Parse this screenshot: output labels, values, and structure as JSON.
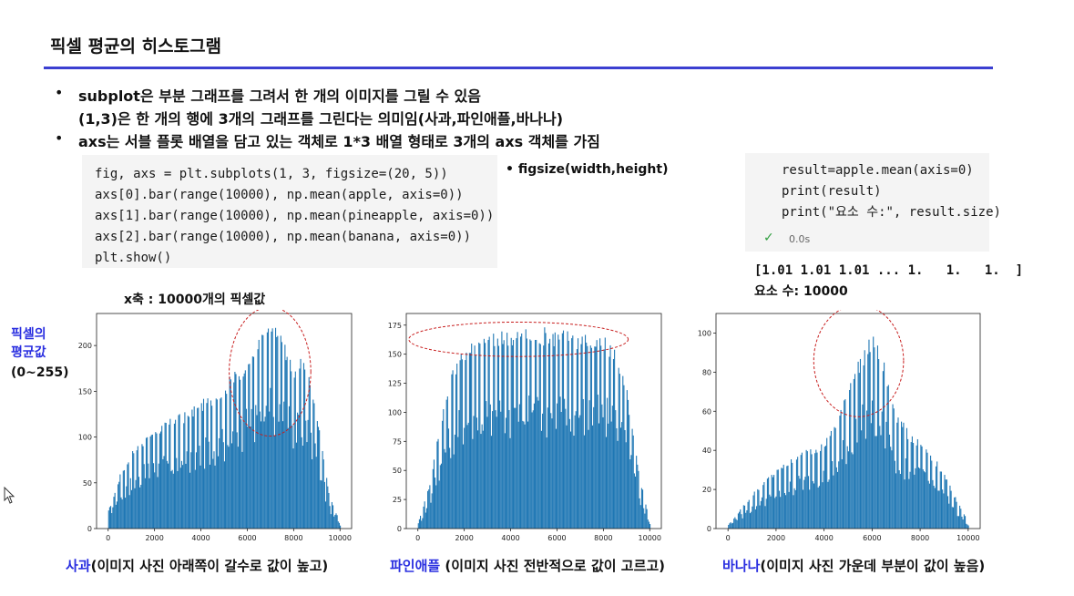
{
  "slide": {
    "title": "픽셀 평균의 히스토그램",
    "bullets": [
      {
        "text": "subplot은 부분 그래프를 그려서 한 개의 이미지를 그릴 수 있음",
        "marker": "•"
      },
      {
        "text": "(1,3)은 한 개의 행에 3개의 그래프를 그린다는 의미임(사과,파인애플,바나나)",
        "marker": ""
      },
      {
        "text": "axs는 서블 플롯 배열을 담고 있는 객체로  1*3 배열 형태로 3개의 axs 객체를 가짐",
        "marker": "•"
      }
    ],
    "code_left": [
      "fig, axs = plt.subplots(1, 3, figsize=(20, 5))",
      "axs[0].bar(range(10000), np.mean(apple, axis=0))",
      "axs[1].bar(range(10000), np.mean(pineapple, axis=0))",
      "axs[2].bar(range(10000), np.mean(banana, axis=0))",
      "plt.show()"
    ],
    "figsize_note": "• figsize(width,height)",
    "code_right": [
      "result=apple.mean(axis=0)",
      "print(result)",
      "print(\"요소 수:\", result.size)"
    ],
    "exec_check": "✓",
    "exec_time": "0.0s",
    "output_lines": [
      "[1.01 1.01 1.01 ... 1.   1.   1.  ]",
      "요소 수: 10000"
    ],
    "xaxis_note": "x축 : 10000개의 픽셀값",
    "ylabel_lines": [
      "픽셀의",
      "평균값",
      "(0~255)"
    ],
    "captions": [
      {
        "colored": "사과",
        "rest": "(이미지 사진 아래쪽이 갈수로 값이 높고)"
      },
      {
        "colored": "파인애플",
        "rest": " (이미지 사진 전반적으로 값이 고르고)"
      },
      {
        "colored": "바나나",
        "rest": "(이미지 사진 가운데 부분이 값이 높음)"
      }
    ]
  },
  "chart_data": [
    {
      "type": "bar",
      "title": "",
      "xlim": [
        -500,
        10500
      ],
      "ylim": [
        0,
        235
      ],
      "xticks": [
        "0",
        "2000",
        "4000",
        "6000",
        "8000",
        "10000"
      ],
      "yticks": [
        "0",
        "50",
        "100",
        "150",
        "200"
      ],
      "ytick_values": [
        0,
        50,
        100,
        150,
        200
      ],
      "bar_color": "#1f77b4",
      "envelope_x": [
        0,
        500,
        1000,
        1500,
        2000,
        2500,
        3000,
        3500,
        4000,
        4500,
        5000,
        5500,
        6000,
        6500,
        7000,
        7500,
        8000,
        8500,
        9000,
        9500,
        10000
      ],
      "envelope_y": [
        20,
        60,
        85,
        100,
        112,
        118,
        125,
        130,
        140,
        150,
        160,
        175,
        190,
        210,
        225,
        215,
        180,
        190,
        130,
        40,
        5
      ],
      "annotation": "red dashed ellipse around peak near 7000"
    },
    {
      "type": "bar",
      "title": "",
      "xlim": [
        -500,
        10500
      ],
      "ylim": [
        0,
        185
      ],
      "xticks": [
        "0",
        "2000",
        "4000",
        "6000",
        "8000",
        "10000"
      ],
      "yticks": [
        "0",
        "25",
        "50",
        "75",
        "100",
        "125",
        "150",
        "175"
      ],
      "ytick_values": [
        0,
        25,
        50,
        75,
        100,
        125,
        150,
        175
      ],
      "bar_color": "#1f77b4",
      "envelope_x": [
        0,
        500,
        1000,
        1500,
        2000,
        2500,
        3000,
        3500,
        4000,
        4500,
        5000,
        5500,
        6000,
        6500,
        7000,
        7500,
        8000,
        8500,
        9000,
        9500,
        10000
      ],
      "envelope_y": [
        5,
        40,
        100,
        140,
        158,
        165,
        168,
        170,
        172,
        172,
        174,
        174,
        173,
        172,
        170,
        168,
        165,
        160,
        120,
        50,
        5
      ],
      "annotation": "red dashed ellipse across the top plateau"
    },
    {
      "type": "bar",
      "title": "",
      "xlim": [
        -500,
        10500
      ],
      "ylim": [
        0,
        110
      ],
      "xticks": [
        "0",
        "2000",
        "4000",
        "6000",
        "8000",
        "10000"
      ],
      "yticks": [
        "0",
        "20",
        "40",
        "60",
        "80",
        "100"
      ],
      "ytick_values": [
        0,
        20,
        40,
        60,
        80,
        100
      ],
      "bar_color": "#1f77b4",
      "envelope_x": [
        0,
        500,
        1000,
        1500,
        2000,
        2500,
        3000,
        3500,
        4000,
        4500,
        5000,
        5500,
        6000,
        6500,
        7000,
        7500,
        8000,
        8500,
        9000,
        9500,
        10000
      ],
      "envelope_y": [
        2,
        10,
        18,
        25,
        30,
        35,
        40,
        42,
        45,
        55,
        75,
        90,
        100,
        85,
        60,
        50,
        45,
        38,
        28,
        15,
        3
      ],
      "annotation": "red dashed ellipse around center peak near 5800"
    }
  ]
}
